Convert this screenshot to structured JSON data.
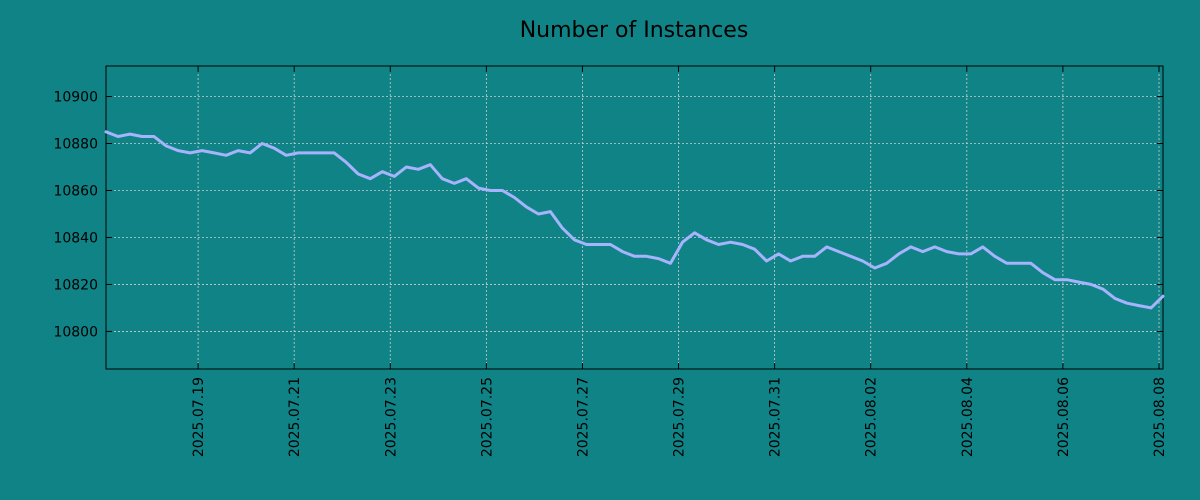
{
  "chart_data": {
    "type": "line",
    "title": "Number of Instances",
    "xlabel": "",
    "ylabel": "",
    "x_ticks": [
      "2025.07.19",
      "2025.07.21",
      "2025.07.23",
      "2025.07.25",
      "2025.07.27",
      "2025.07.29",
      "2025.07.31",
      "2025.08.02",
      "2025.08.04",
      "2025.08.06",
      "2025.08.08"
    ],
    "y_ticks": [
      10800,
      10820,
      10840,
      10860,
      10880,
      10900
    ],
    "xlim": [
      "2025.07.17 02:00",
      "2025.08.08 02:00"
    ],
    "ylim": [
      10784,
      10913
    ],
    "grid": true,
    "colors": {
      "background": "#108386",
      "line": "#a5b4fc",
      "grid": "#c8d0d0",
      "axes": "#000000"
    },
    "series": [
      {
        "x": [
          "2025.07.17 02:00",
          "2025.07.17 08:00",
          "2025.07.17 14:00",
          "2025.07.17 20:00",
          "2025.07.18 02:00",
          "2025.07.18 08:00",
          "2025.07.18 14:00",
          "2025.07.18 20:00",
          "2025.07.19 02:00",
          "2025.07.19 08:00",
          "2025.07.19 14:00",
          "2025.07.19 20:00",
          "2025.07.20 02:00",
          "2025.07.20 08:00",
          "2025.07.20 14:00",
          "2025.07.20 20:00",
          "2025.07.21 02:00",
          "2025.07.21 08:00",
          "2025.07.21 14:00",
          "2025.07.21 20:00",
          "2025.07.22 02:00",
          "2025.07.22 08:00",
          "2025.07.22 14:00",
          "2025.07.22 20:00",
          "2025.07.23 02:00",
          "2025.07.23 08:00",
          "2025.07.23 14:00",
          "2025.07.23 20:00",
          "2025.07.24 02:00",
          "2025.07.24 08:00",
          "2025.07.24 14:00",
          "2025.07.24 20:00",
          "2025.07.25 02:00",
          "2025.07.25 08:00",
          "2025.07.25 14:00",
          "2025.07.25 20:00",
          "2025.07.26 02:00",
          "2025.07.26 08:00",
          "2025.07.26 14:00",
          "2025.07.26 20:00",
          "2025.07.27 02:00",
          "2025.07.27 08:00",
          "2025.07.27 14:00",
          "2025.07.27 20:00",
          "2025.07.28 02:00",
          "2025.07.28 08:00",
          "2025.07.28 14:00",
          "2025.07.28 20:00",
          "2025.07.29 02:00",
          "2025.07.29 08:00",
          "2025.07.29 14:00",
          "2025.07.29 20:00",
          "2025.07.30 02:00",
          "2025.07.30 08:00",
          "2025.07.30 14:00",
          "2025.07.30 20:00",
          "2025.07.31 02:00",
          "2025.07.31 08:00",
          "2025.07.31 14:00",
          "2025.07.31 20:00",
          "2025.08.01 02:00",
          "2025.08.01 08:00",
          "2025.08.01 14:00",
          "2025.08.01 20:00",
          "2025.08.02 02:00",
          "2025.08.02 08:00",
          "2025.08.02 14:00",
          "2025.08.02 20:00",
          "2025.08.03 02:00",
          "2025.08.03 08:00",
          "2025.08.03 14:00",
          "2025.08.03 20:00",
          "2025.08.04 02:00",
          "2025.08.04 08:00",
          "2025.08.04 14:00",
          "2025.08.04 20:00",
          "2025.08.05 02:00",
          "2025.08.05 08:00",
          "2025.08.05 14:00",
          "2025.08.05 20:00",
          "2025.08.06 02:00",
          "2025.08.06 08:00",
          "2025.08.06 14:00",
          "2025.08.06 20:00",
          "2025.08.07 02:00",
          "2025.08.07 08:00",
          "2025.08.07 14:00",
          "2025.08.07 20:00",
          "2025.08.08 02:00"
        ],
        "y": [
          10885,
          10883,
          10884,
          10883,
          10883,
          10879,
          10877,
          10876,
          10877,
          10876,
          10875,
          10877,
          10876,
          10880,
          10878,
          10875,
          10876,
          10876,
          10876,
          10876,
          10872,
          10867,
          10865,
          10868,
          10866,
          10870,
          10869,
          10871,
          10865,
          10863,
          10865,
          10861,
          10860,
          10860,
          10857,
          10853,
          10850,
          10851,
          10844,
          10839,
          10837,
          10837,
          10837,
          10834,
          10832,
          10832,
          10831,
          10829,
          10838,
          10842,
          10839,
          10837,
          10838,
          10837,
          10835,
          10830,
          10833,
          10830,
          10832,
          10832,
          10836,
          10834,
          10832,
          10830,
          10827,
          10829,
          10833,
          10836,
          10834,
          10836,
          10834,
          10833,
          10833,
          10836,
          10832,
          10829,
          10829,
          10829,
          10825,
          10822,
          10822,
          10821,
          10820,
          10818,
          10814,
          10812,
          10811,
          10810,
          10815
        ]
      }
    ]
  }
}
